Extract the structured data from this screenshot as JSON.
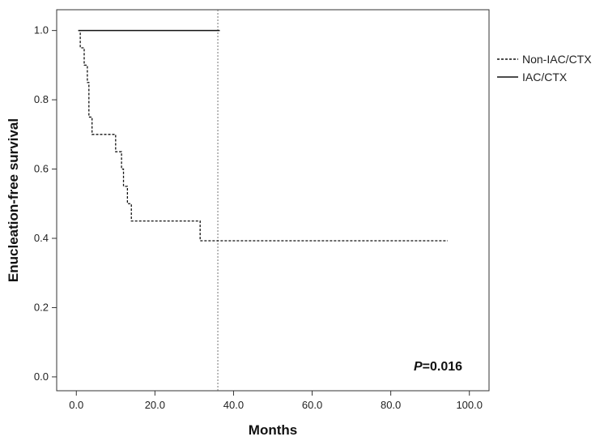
{
  "chart_data": {
    "type": "line",
    "title": "",
    "xlabel": "Months",
    "ylabel": "Enucleation-free survival",
    "xlim": [
      -5,
      105
    ],
    "ylim": [
      -0.04,
      1.06
    ],
    "x_ticks": [
      0,
      20,
      40,
      60,
      80,
      100
    ],
    "x_tick_labels": [
      "0.0",
      "20.0",
      "40.0",
      "60.0",
      "80.0",
      "100.0"
    ],
    "y_ticks": [
      0,
      0.2,
      0.4,
      0.6,
      0.8,
      1.0
    ],
    "y_tick_labels": [
      "0.0",
      "0.2",
      "0.4",
      "0.6",
      "0.8",
      "1.0"
    ],
    "grid": false,
    "legend_position": "outside-right-top",
    "series": [
      {
        "name": "Non-IAC/CTX",
        "style": "dashed",
        "color": "#111111",
        "x": [
          0.5,
          1.0,
          2.0,
          2.8,
          3.2,
          4.0,
          10.0,
          11.5,
          12.0,
          13.0,
          14.0,
          31.5,
          94.5
        ],
        "y": [
          1.0,
          0.95,
          0.9,
          0.85,
          0.75,
          0.7,
          0.65,
          0.6,
          0.55,
          0.5,
          0.45,
          0.393,
          0.393
        ]
      },
      {
        "name": "IAC/CTX",
        "style": "solid",
        "color": "#111111",
        "x": [
          0.5,
          36.5
        ],
        "y": [
          1.0,
          1.0
        ]
      }
    ],
    "reference_lines": [
      {
        "orientation": "vertical",
        "x": 36,
        "style": "dotted"
      }
    ],
    "annotations": [
      {
        "label": "P",
        "value": "=0.016"
      }
    ]
  }
}
